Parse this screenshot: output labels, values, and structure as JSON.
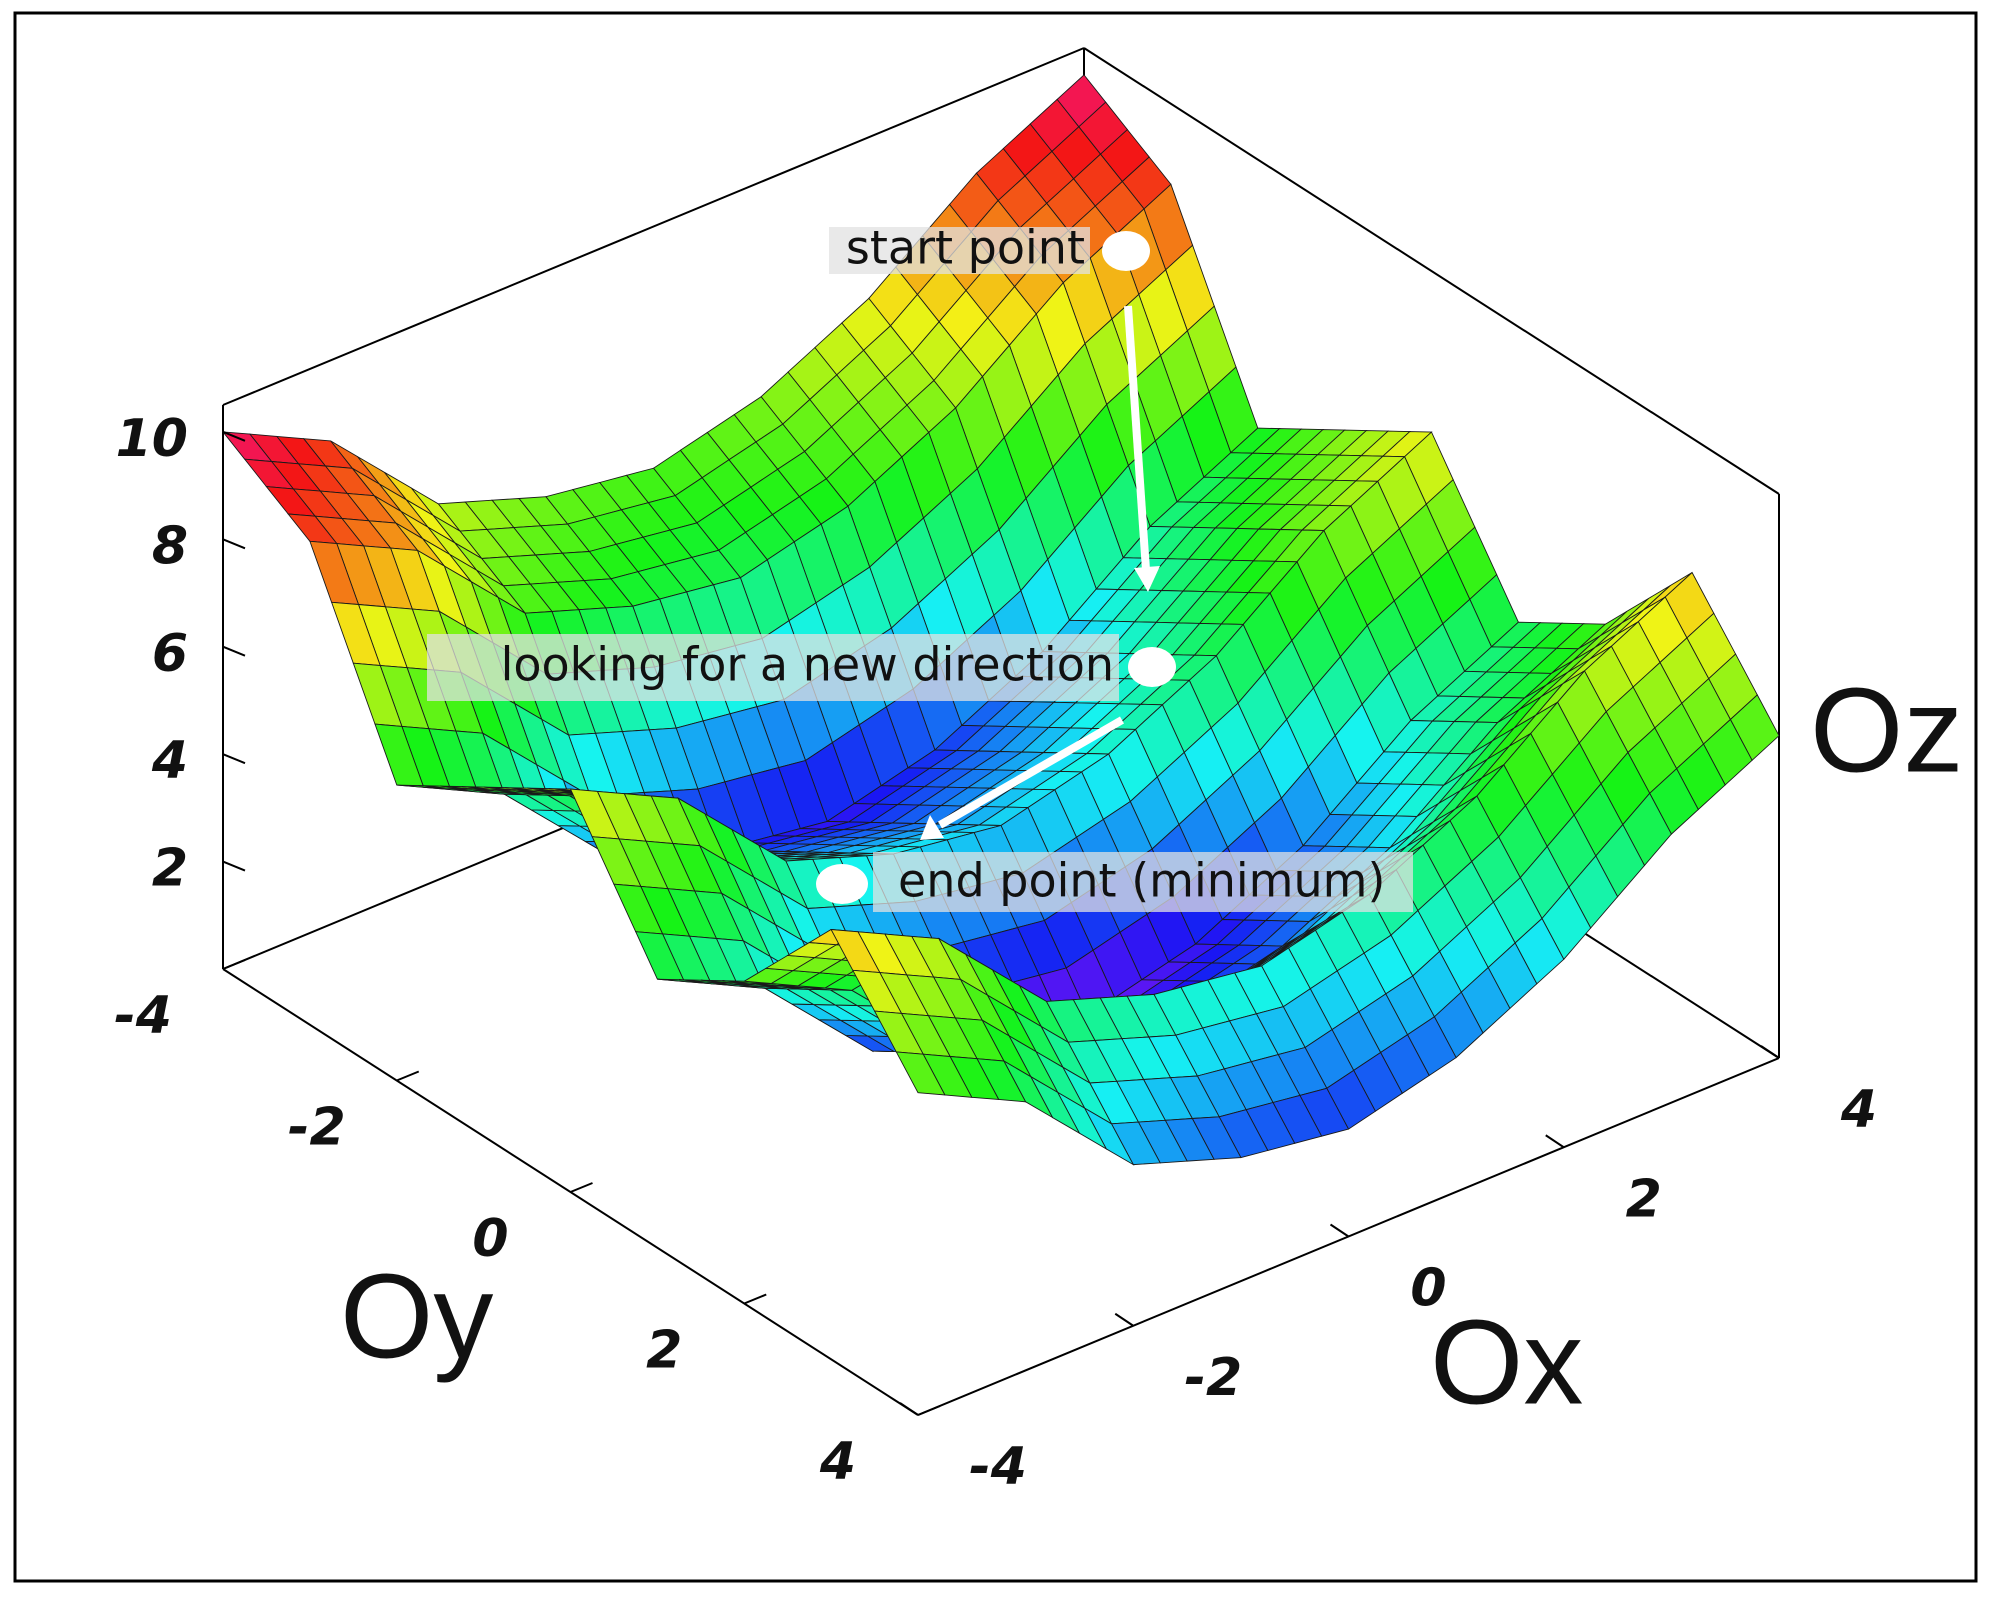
{
  "chart_data": {
    "type": "surface",
    "x": [
      -4,
      -3,
      -2,
      -1,
      0,
      1,
      2,
      3,
      4
    ],
    "y": [
      -4,
      -3,
      -2,
      -1,
      0,
      1,
      2,
      3,
      4
    ],
    "z": [
      [
        10,
        9,
        7,
        6.3,
        6,
        6.5,
        7.5,
        9,
        10
      ],
      [
        9,
        8,
        6,
        5.3,
        5,
        5.5,
        6.5,
        8,
        9
      ],
      [
        5.5,
        4.5,
        2.5,
        1.8,
        1.5,
        2,
        3,
        4.5,
        5.5
      ],
      [
        6.5,
        5.5,
        3.5,
        2.8,
        2.5,
        3,
        4,
        5.5,
        6.5
      ],
      [
        7.5,
        6.5,
        4.5,
        3.8,
        3.5,
        4,
        5,
        6.5,
        7.5
      ],
      [
        5,
        4,
        2,
        1.3,
        1,
        1.5,
        2.5,
        4,
        5
      ],
      [
        6,
        5,
        3,
        2.3,
        2,
        2.5,
        3.5,
        5,
        6
      ],
      [
        8,
        7,
        5,
        4.3,
        4,
        4.5,
        5.5,
        7,
        8
      ],
      [
        6,
        5,
        3,
        2.3,
        2,
        2.5,
        3.5,
        5,
        6
      ]
    ],
    "xlabel": "Ox",
    "ylabel": "Oy",
    "zlabel": "Oz",
    "xlim": [
      -4,
      4
    ],
    "ylim": [
      -4,
      4
    ],
    "zlim": [
      0,
      10.5
    ],
    "xticks": [
      -4,
      -2,
      0,
      2,
      4
    ],
    "yticks": [
      -4,
      -2,
      0,
      2,
      4
    ],
    "zticks": [
      2,
      4,
      6,
      8,
      10
    ],
    "annotations": [
      "start point",
      "looking for a new direction",
      "end point (minimum)"
    ]
  }
}
